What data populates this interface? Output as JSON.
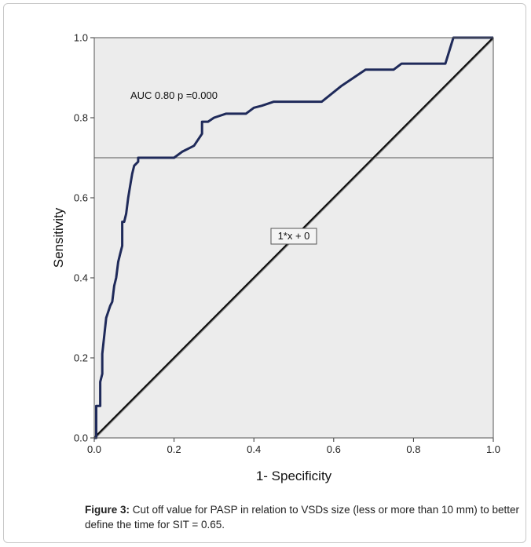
{
  "chart_data": {
    "type": "line",
    "xlabel": "1- Specificity",
    "ylabel": "Sensitivity",
    "xlim": [
      0.0,
      1.0
    ],
    "ylim": [
      0.0,
      1.0
    ],
    "x_ticks": [
      "0.0",
      "0.2",
      "0.4",
      "0.6",
      "0.8",
      "1.0"
    ],
    "y_ticks": [
      "0.0",
      "0.2",
      "0.4",
      "0.6",
      "0.8",
      "1.0"
    ],
    "grid": false,
    "annotations": {
      "auc_label": "AUC 0.80 p =0.000",
      "reference_line_label": "1*x + 0"
    },
    "cutoff_sensitivity": 0.7,
    "series": [
      {
        "color": "#1f2a5a",
        "x": [
          0.0,
          0.005,
          0.005,
          0.015,
          0.015,
          0.02,
          0.02,
          0.03,
          0.03,
          0.04,
          0.045,
          0.05,
          0.055,
          0.06,
          0.065,
          0.07,
          0.07,
          0.075,
          0.08,
          0.085,
          0.09,
          0.095,
          0.1,
          0.1,
          0.11,
          0.11,
          0.12,
          0.18,
          0.2,
          0.22,
          0.24,
          0.25,
          0.26,
          0.27,
          0.27,
          0.285,
          0.3,
          0.33,
          0.38,
          0.4,
          0.42,
          0.45,
          0.5,
          0.57,
          0.62,
          0.68,
          0.72,
          0.75,
          0.77,
          0.8,
          0.85,
          0.88,
          0.9,
          0.9,
          0.95,
          1.0
        ],
        "y": [
          0.0,
          0.0,
          0.08,
          0.08,
          0.14,
          0.16,
          0.21,
          0.3,
          0.3,
          0.33,
          0.34,
          0.38,
          0.4,
          0.44,
          0.46,
          0.48,
          0.54,
          0.54,
          0.56,
          0.6,
          0.63,
          0.66,
          0.68,
          0.68,
          0.69,
          0.7,
          0.7,
          0.7,
          0.7,
          0.715,
          0.725,
          0.73,
          0.745,
          0.76,
          0.79,
          0.79,
          0.8,
          0.81,
          0.81,
          0.825,
          0.83,
          0.84,
          0.84,
          0.84,
          0.88,
          0.92,
          0.92,
          0.92,
          0.935,
          0.935,
          0.935,
          0.935,
          1.0,
          1.0,
          1.0,
          1.0
        ]
      },
      {
        "color": "#888888",
        "x": [
          0.0,
          1.0
        ],
        "y": [
          0.0,
          1.0
        ]
      }
    ]
  },
  "caption": {
    "label": "Figure 3:",
    "text": " Cut off value for PASP in relation to VSDs size (less or more than 10 mm) to better define the time for SIT = 0.65."
  },
  "colors": {
    "plot_background": "#ececec",
    "roc_curve": "#1f2a5a",
    "diagonal": "#0a0a0a",
    "cutoff_line": "#888888"
  }
}
